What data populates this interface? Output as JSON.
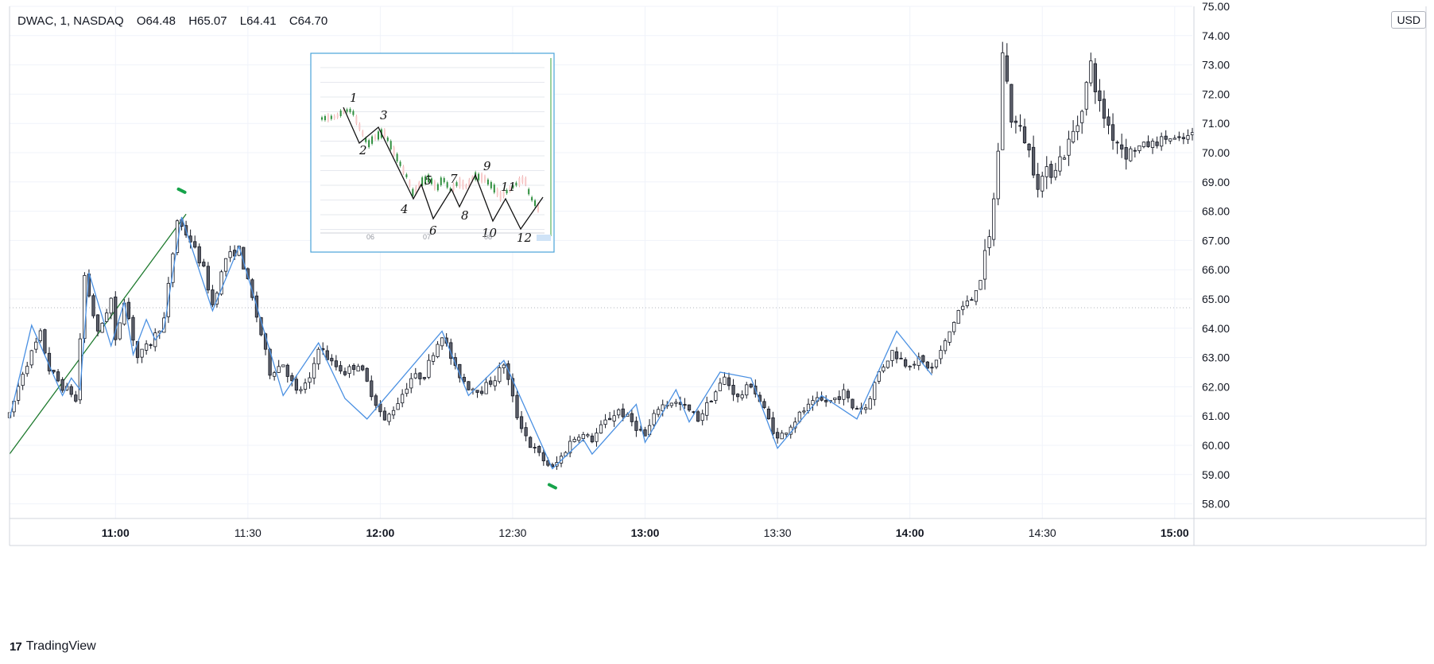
{
  "legend": {
    "symbol": "DWAC, 1, NASDAQ",
    "open": "O64.48",
    "high": "H65.07",
    "low": "L64.41",
    "close": "C64.70"
  },
  "currency_button": "USD",
  "brand": "TradingView",
  "chart_data": {
    "type": "candlestick",
    "y_axis": {
      "min": 57.5,
      "max": 75.0,
      "ticks": [
        "58.00",
        "59.00",
        "60.00",
        "61.00",
        "62.00",
        "63.00",
        "64.00",
        "65.00",
        "66.00",
        "67.00",
        "68.00",
        "69.00",
        "70.00",
        "71.00",
        "72.00",
        "73.00",
        "74.00",
        "75.00"
      ]
    },
    "x_axis": {
      "start": "10:36",
      "end": "15:04",
      "ticks": [
        {
          "time": "11:00",
          "label": "11:00",
          "major": true
        },
        {
          "time": "11:30",
          "label": "11:30",
          "major": false
        },
        {
          "time": "12:00",
          "label": "12:00",
          "major": true
        },
        {
          "time": "12:30",
          "label": "12:30",
          "major": false
        },
        {
          "time": "13:00",
          "label": "13:00",
          "major": true
        },
        {
          "time": "13:30",
          "label": "13:30",
          "major": false
        },
        {
          "time": "14:00",
          "label": "14:00",
          "major": true
        },
        {
          "time": "14:30",
          "label": "14:30",
          "major": false
        },
        {
          "time": "15:00",
          "label": "15:00",
          "major": true
        }
      ]
    },
    "candle_colors": {
      "up": "#ffffff",
      "down": "#5d606b",
      "wick": "#131722"
    },
    "anchor_path": [
      [
        "10:36",
        61.0
      ],
      [
        "10:39",
        62.5
      ],
      [
        "10:43",
        63.8
      ],
      [
        "10:45",
        62.6
      ],
      [
        "10:48",
        62.0
      ],
      [
        "10:50",
        61.8
      ],
      [
        "10:51",
        61.5
      ],
      [
        "10:53",
        65.8
      ],
      [
        "10:56",
        63.8
      ],
      [
        "10:59",
        65.0
      ],
      [
        "11:00",
        63.5
      ],
      [
        "11:02",
        65.0
      ],
      [
        "11:05",
        63.0
      ],
      [
        "11:08",
        63.5
      ],
      [
        "11:11",
        64.3
      ],
      [
        "11:14",
        67.7
      ],
      [
        "11:17",
        67.0
      ],
      [
        "11:20",
        66.0
      ],
      [
        "11:22",
        64.8
      ],
      [
        "11:25",
        66.4
      ],
      [
        "11:28",
        66.7
      ],
      [
        "11:31",
        65.0
      ],
      [
        "11:33",
        63.8
      ],
      [
        "11:35",
        62.5
      ],
      [
        "11:38",
        62.8
      ],
      [
        "11:41",
        61.8
      ],
      [
        "11:44",
        62.2
      ],
      [
        "11:46",
        63.4
      ],
      [
        "11:49",
        62.8
      ],
      [
        "11:52",
        62.5
      ],
      [
        "11:55",
        62.8
      ],
      [
        "11:58",
        61.8
      ],
      [
        "12:01",
        60.8
      ],
      [
        "12:04",
        61.5
      ],
      [
        "12:07",
        62.3
      ],
      [
        "12:10",
        62.4
      ],
      [
        "12:12",
        63.2
      ],
      [
        "12:14",
        63.8
      ],
      [
        "12:17",
        62.6
      ],
      [
        "12:20",
        62.0
      ],
      [
        "12:23",
        61.9
      ],
      [
        "12:26",
        62.3
      ],
      [
        "12:28",
        62.8
      ],
      [
        "12:31",
        61.0
      ],
      [
        "12:34",
        60.0
      ],
      [
        "12:37",
        59.5
      ],
      [
        "12:39",
        59.2
      ],
      [
        "12:41",
        59.6
      ],
      [
        "12:43",
        60.1
      ],
      [
        "12:45",
        60.4
      ],
      [
        "12:48",
        60.2
      ],
      [
        "12:51",
        60.8
      ],
      [
        "12:54",
        61.2
      ],
      [
        "12:57",
        60.8
      ],
      [
        "13:00",
        60.3
      ],
      [
        "13:03",
        61.3
      ],
      [
        "13:06",
        61.5
      ],
      [
        "13:09",
        61.3
      ],
      [
        "13:12",
        60.9
      ],
      [
        "13:15",
        61.6
      ],
      [
        "13:18",
        62.3
      ],
      [
        "13:21",
        61.6
      ],
      [
        "13:24",
        62.1
      ],
      [
        "13:27",
        61.2
      ],
      [
        "13:30",
        60.2
      ],
      [
        "13:33",
        60.7
      ],
      [
        "13:36",
        61.2
      ],
      [
        "13:39",
        61.5
      ],
      [
        "13:42",
        61.5
      ],
      [
        "13:45",
        61.8
      ],
      [
        "13:47",
        61.3
      ],
      [
        "13:50",
        61.3
      ],
      [
        "13:53",
        62.5
      ],
      [
        "13:56",
        63.2
      ],
      [
        "13:59",
        62.8
      ],
      [
        "14:02",
        62.9
      ],
      [
        "14:05",
        62.6
      ],
      [
        "14:08",
        63.5
      ],
      [
        "14:11",
        64.6
      ],
      [
        "14:14",
        65.0
      ],
      [
        "14:16",
        65.8
      ],
      [
        "14:18",
        67.0
      ],
      [
        "14:20",
        70.0
      ],
      [
        "14:21",
        73.5
      ],
      [
        "14:23",
        71.2
      ],
      [
        "14:26",
        70.5
      ],
      [
        "14:29",
        69.0
      ],
      [
        "14:32",
        69.4
      ],
      [
        "14:35",
        70.0
      ],
      [
        "14:38",
        71.0
      ],
      [
        "14:41",
        73.0
      ],
      [
        "14:43",
        71.6
      ],
      [
        "14:46",
        70.6
      ],
      [
        "14:49",
        70.0
      ],
      [
        "14:52",
        70.2
      ],
      [
        "14:55",
        70.3
      ],
      [
        "14:58",
        70.5
      ],
      [
        "15:01",
        70.4
      ],
      [
        "15:04",
        70.6
      ]
    ],
    "zigzag": [
      [
        "10:36",
        60.9
      ],
      [
        "10:41",
        64.1
      ],
      [
        "10:48",
        61.7
      ],
      [
        "10:50",
        62.3
      ],
      [
        "10:52",
        61.9
      ],
      [
        "10:54",
        65.9
      ],
      [
        "10:59",
        63.4
      ],
      [
        "11:02",
        64.9
      ],
      [
        "11:04",
        63.1
      ],
      [
        "11:07",
        64.3
      ],
      [
        "11:09",
        63.6
      ],
      [
        "11:11",
        64.0
      ],
      [
        "11:15",
        67.8
      ],
      [
        "11:22",
        64.6
      ],
      [
        "11:28",
        66.8
      ],
      [
        "11:38",
        61.7
      ],
      [
        "11:46",
        63.5
      ],
      [
        "11:52",
        61.6
      ],
      [
        "11:57",
        60.9
      ],
      [
        "12:14",
        63.9
      ],
      [
        "12:20",
        61.7
      ],
      [
        "12:28",
        62.9
      ],
      [
        "12:39",
        59.2
      ],
      [
        "12:46",
        60.2
      ],
      [
        "12:48",
        59.7
      ],
      [
        "12:58",
        61.4
      ],
      [
        "13:00",
        60.1
      ],
      [
        "13:07",
        61.9
      ],
      [
        "13:10",
        60.8
      ],
      [
        "13:17",
        62.5
      ],
      [
        "13:24",
        62.3
      ],
      [
        "13:30",
        59.9
      ],
      [
        "13:40",
        61.7
      ],
      [
        "13:48",
        60.9
      ],
      [
        "13:57",
        63.9
      ],
      [
        "14:05",
        62.4
      ]
    ],
    "trendline": {
      "from": [
        "10:36",
        59.7
      ],
      "to": [
        "11:16",
        67.9
      ],
      "color": "#1e7a2e"
    },
    "markers": [
      {
        "time": "11:15",
        "price": 68.7,
        "color": "#16a34a"
      },
      {
        "time": "12:39",
        "price": 58.6,
        "color": "#16a34a"
      }
    ]
  },
  "inset": {
    "date_ticks": [
      "06",
      "07",
      "08"
    ],
    "wave_labels": [
      "1",
      "2",
      "3",
      "4",
      "5",
      "6",
      "7",
      "8",
      "9",
      "10",
      "11",
      "12"
    ]
  }
}
